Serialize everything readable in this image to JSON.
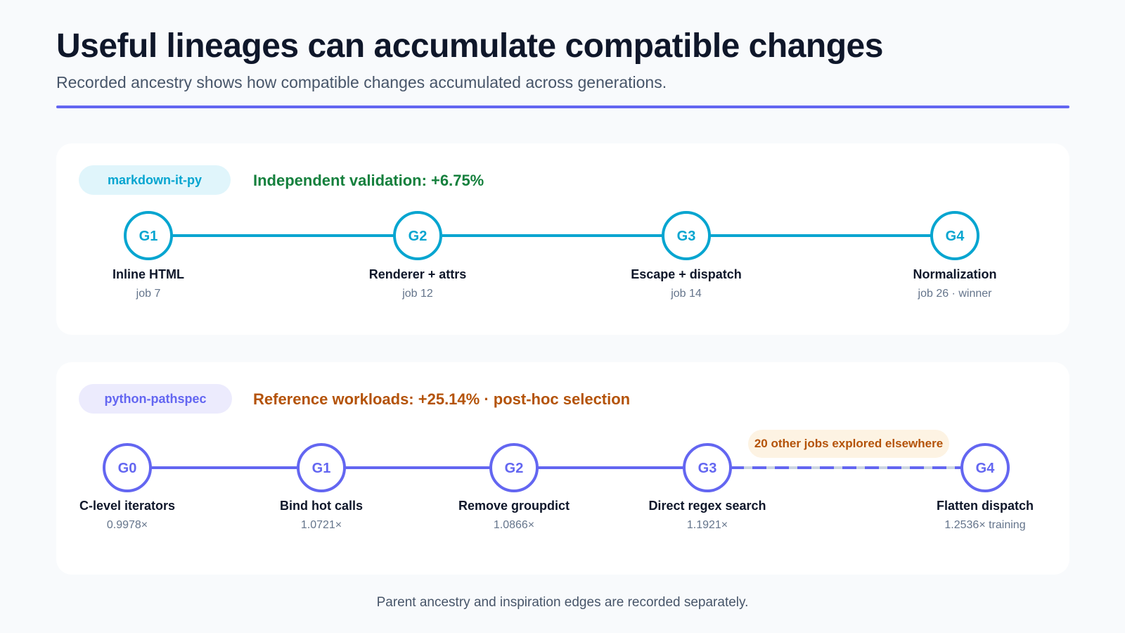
{
  "title": "Useful lineages can accumulate compatible changes",
  "subtitle": "Recorded ancestry shows how compatible changes accumulated across generations.",
  "footnote": "Parent ancestry and inspiration edges are recorded separately.",
  "colors": {
    "accent": "#6366f1",
    "lineage1": "#06a5d0",
    "lineage1_pill_bg": "#e0f5fb",
    "lineage2": "#6366f1",
    "lineage2_pill_bg": "#ecebfd",
    "green": "#15803d",
    "orange": "#b45309"
  },
  "lineages": [
    {
      "project": "markdown-it-py",
      "headline": "Independent validation: +6.75%",
      "nodes": [
        {
          "gen": "G1",
          "label": "Inline HTML",
          "detail": "job 7"
        },
        {
          "gen": "G2",
          "label": "Renderer + attrs",
          "detail": "job 12"
        },
        {
          "gen": "G3",
          "label": "Escape + dispatch",
          "detail": "job 14"
        },
        {
          "gen": "G4",
          "label": "Normalization",
          "detail": "job 26 · winner"
        }
      ]
    },
    {
      "project": "python-pathspec",
      "headline": "Reference workloads: +25.14% · post-hoc selection",
      "explore_note": "20 other jobs explored elsewhere",
      "nodes": [
        {
          "gen": "G0",
          "label": "C-level iterators",
          "detail": "0.9978×"
        },
        {
          "gen": "G1",
          "label": "Bind hot calls",
          "detail": "1.0721×"
        },
        {
          "gen": "G2",
          "label": "Remove groupdict",
          "detail": "1.0866×"
        },
        {
          "gen": "G3",
          "label": "Direct regex search",
          "detail": "1.1921×"
        },
        {
          "gen": "G4",
          "label": "Flatten dispatch",
          "detail": "1.2536× training"
        }
      ]
    }
  ]
}
